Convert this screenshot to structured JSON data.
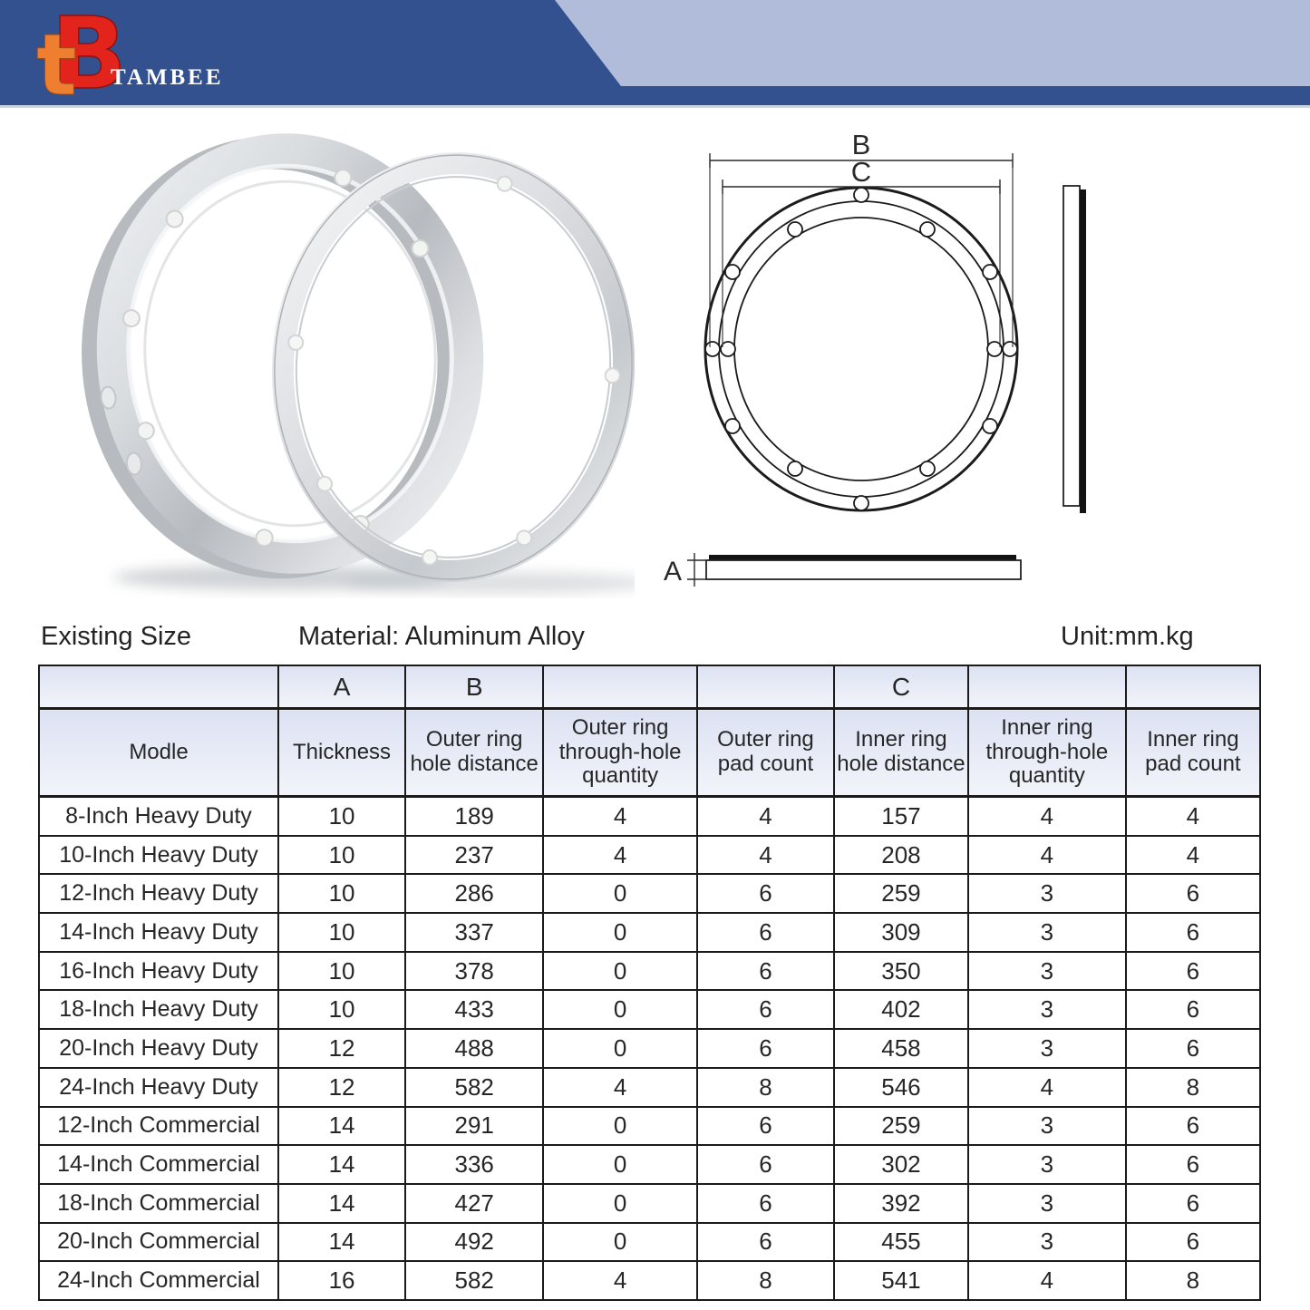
{
  "brand": {
    "name": "TAMBEE",
    "logo_text_t": "t",
    "logo_text_b": "B"
  },
  "info_bar": {
    "existing_size": "Existing Size",
    "material": "Material: Aluminum Alloy",
    "unit": "Unit:mm.kg"
  },
  "diagram": {
    "dim_a": "A",
    "dim_b": "B",
    "dim_c": "C"
  },
  "table": {
    "group_headers": [
      "",
      "A",
      "B",
      "",
      "",
      "C",
      "",
      ""
    ],
    "columns": [
      "Modle",
      "Thickness",
      "Outer ring hole distance",
      "Outer ring through-hole quantity",
      "Outer ring pad count",
      "Inner ring hole distance",
      "Inner ring through-hole quantity",
      "Inner ring pad count"
    ],
    "rows": [
      [
        "8-Inch Heavy Duty",
        "10",
        "189",
        "4",
        "4",
        "157",
        "4",
        "4"
      ],
      [
        "10-Inch Heavy Duty",
        "10",
        "237",
        "4",
        "4",
        "208",
        "4",
        "4"
      ],
      [
        "12-Inch Heavy Duty",
        "10",
        "286",
        "0",
        "6",
        "259",
        "3",
        "6"
      ],
      [
        "14-Inch Heavy Duty",
        "10",
        "337",
        "0",
        "6",
        "309",
        "3",
        "6"
      ],
      [
        "16-Inch Heavy Duty",
        "10",
        "378",
        "0",
        "6",
        "350",
        "3",
        "6"
      ],
      [
        "18-Inch Heavy Duty",
        "10",
        "433",
        "0",
        "6",
        "402",
        "3",
        "6"
      ],
      [
        "20-Inch Heavy Duty",
        "12",
        "488",
        "0",
        "6",
        "458",
        "3",
        "6"
      ],
      [
        "24-Inch Heavy Duty",
        "12",
        "582",
        "4",
        "8",
        "546",
        "4",
        "8"
      ],
      [
        "12-Inch Commercial",
        "14",
        "291",
        "0",
        "6",
        "259",
        "3",
        "6"
      ],
      [
        "14-Inch Commercial",
        "14",
        "336",
        "0",
        "6",
        "302",
        "3",
        "6"
      ],
      [
        "18-Inch Commercial",
        "14",
        "427",
        "0",
        "6",
        "392",
        "3",
        "6"
      ],
      [
        "20-Inch Commercial",
        "14",
        "492",
        "0",
        "6",
        "455",
        "3",
        "6"
      ],
      [
        "24-Inch Commercial",
        "16",
        "582",
        "4",
        "8",
        "541",
        "4",
        "8"
      ]
    ]
  },
  "colors": {
    "banner_blue": "#33508f",
    "banner_light": "#b0bcd9",
    "logo_red": "#e3241c",
    "logo_orange": "#ee7f31",
    "table_header_top": "#dde2f3",
    "table_header_bottom": "#f2f4fa",
    "line": "#1b1b1b"
  }
}
